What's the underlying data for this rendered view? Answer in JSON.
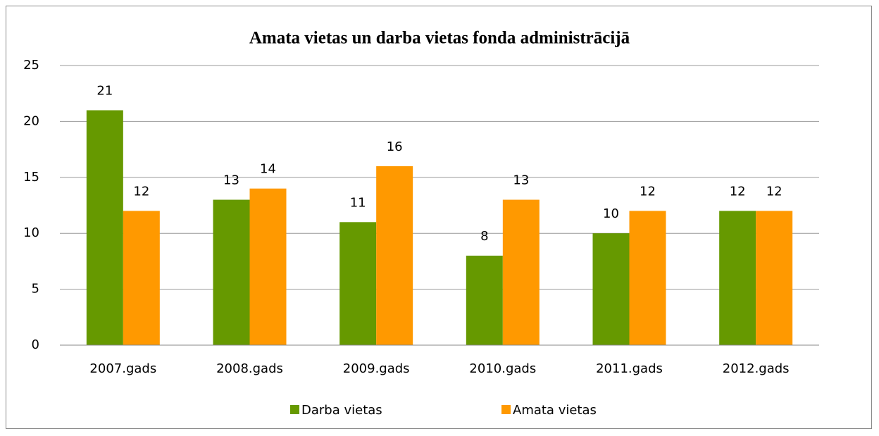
{
  "chart_data": {
    "type": "bar",
    "title": "Amata vietas un darba vietas fonda administrācijā",
    "categories": [
      "2007.gads",
      "2008.gads",
      "2009.gads",
      "2010.gads",
      "2011.gads",
      "2012.gads"
    ],
    "series": [
      {
        "name": "Darba vietas",
        "color": "#669900",
        "values": [
          21,
          13,
          11,
          8,
          10,
          12
        ]
      },
      {
        "name": "Amata vietas",
        "color": "#ff9900",
        "values": [
          12,
          14,
          16,
          13,
          12,
          12
        ]
      }
    ],
    "ylim": [
      0,
      25
    ],
    "yticks": [
      0,
      5,
      10,
      15,
      20,
      25
    ],
    "grid": true,
    "legend": "bottom"
  }
}
